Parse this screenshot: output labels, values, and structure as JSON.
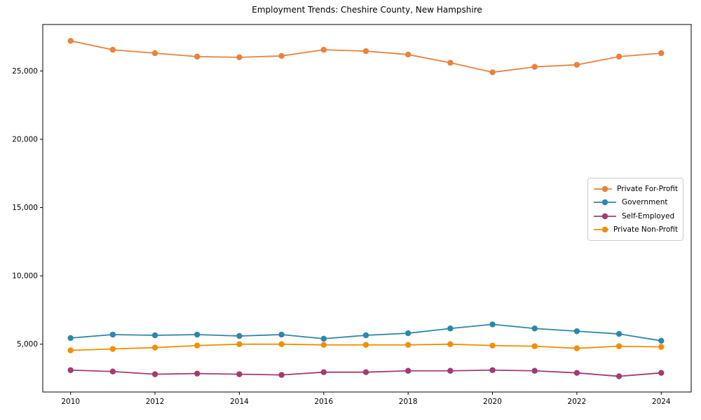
{
  "chart_data": {
    "type": "line",
    "title": "Employment Trends: Cheshire County, New Hampshire",
    "xlabel": "",
    "ylabel": "",
    "grid": false,
    "legend_position": "center right",
    "x": [
      2010,
      2011,
      2012,
      2013,
      2014,
      2015,
      2016,
      2017,
      2018,
      2019,
      2020,
      2021,
      2022,
      2023,
      2024
    ],
    "xticks": [
      2010,
      2012,
      2014,
      2016,
      2018,
      2020,
      2022,
      2024
    ],
    "xtick_labels": [
      "2010",
      "2012",
      "2014",
      "2016",
      "2018",
      "2020",
      "2022",
      "2024"
    ],
    "yticks": [
      5000,
      10000,
      15000,
      20000,
      25000
    ],
    "ytick_labels": [
      "5,000",
      "10,000",
      "15,000",
      "20,000",
      "25,000"
    ],
    "xlim": [
      2009.34,
      2024.71
    ],
    "ylim": [
      1500,
      28400
    ],
    "series": [
      {
        "name": "Private For-Profit",
        "color": "#E8823C",
        "values": [
          27200,
          26550,
          26300,
          26050,
          26000,
          26100,
          26550,
          26450,
          26200,
          25600,
          24900,
          25300,
          25450,
          26050,
          26300
        ]
      },
      {
        "name": "Government",
        "color": "#2E86AB",
        "values": [
          5450,
          5700,
          5650,
          5700,
          5600,
          5700,
          5400,
          5650,
          5800,
          6150,
          6450,
          6150,
          5950,
          5750,
          5250
        ]
      },
      {
        "name": "Self-Employed",
        "color": "#A23B72",
        "values": [
          3100,
          3000,
          2800,
          2850,
          2800,
          2750,
          2950,
          2950,
          3050,
          3050,
          3100,
          3050,
          2900,
          2650,
          2900
        ]
      },
      {
        "name": "Private Non-Profit",
        "color": "#F18F01",
        "values": [
          4550,
          4650,
          4750,
          4900,
          5000,
          5000,
          4950,
          4950,
          4950,
          5000,
          4900,
          4850,
          4700,
          4850,
          4800
        ]
      }
    ],
    "axis_color": "#000000",
    "tick_font_size": 10.5,
    "title_font_size": 12
  }
}
